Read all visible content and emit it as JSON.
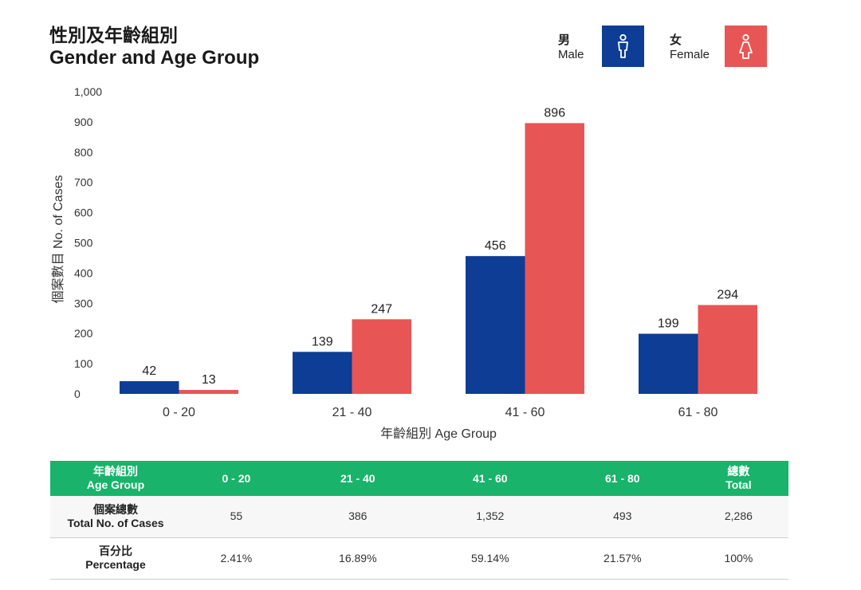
{
  "title": {
    "zh": "性別及年齡組別",
    "en": "Gender and Age Group"
  },
  "legend": {
    "male": {
      "zh": "男",
      "en": "Male",
      "color": "#0d3d94",
      "icon": "male-person-icon"
    },
    "female": {
      "zh": "女",
      "en": "Female",
      "color": "#e85555",
      "icon": "female-person-icon"
    }
  },
  "chart_data": {
    "type": "bar",
    "categories": [
      "0 - 20",
      "21 - 40",
      "41 - 60",
      "61 - 80"
    ],
    "series": [
      {
        "name": "Male",
        "values": [
          42,
          139,
          456,
          199
        ],
        "color": "#0d3d94"
      },
      {
        "name": "Female",
        "values": [
          13,
          247,
          896,
          294
        ],
        "color": "#e85555"
      }
    ],
    "data_labels": [
      [
        "42",
        "139",
        "456",
        "199"
      ],
      [
        "13",
        "247",
        "896",
        "294"
      ]
    ],
    "ylim": [
      0,
      1000
    ],
    "yticks": [
      "0",
      "100",
      "200",
      "300",
      "400",
      "500",
      "600",
      "700",
      "800",
      "900",
      "1,000"
    ],
    "xlabel": "年齡組別 Age Group",
    "ylabel": "個案數目 No. of Cases",
    "grid": false,
    "legend_position": "top-right"
  },
  "table": {
    "header": {
      "first": {
        "zh": "年齡組別",
        "en": "Age Group"
      },
      "cols": [
        "0 - 20",
        "21 - 40",
        "41 - 60",
        "61 - 80"
      ],
      "last": {
        "zh": "總數",
        "en": "Total"
      }
    },
    "rows": [
      {
        "label_zh": "個案總數",
        "label_en": "Total No. of Cases",
        "values": [
          "55",
          "386",
          "1,352",
          "493",
          "2,286"
        ]
      },
      {
        "label_zh": "百分比",
        "label_en": "Percentage",
        "values": [
          "2.41%",
          "16.89%",
          "59.14%",
          "21.57%",
          "100%"
        ]
      }
    ]
  }
}
